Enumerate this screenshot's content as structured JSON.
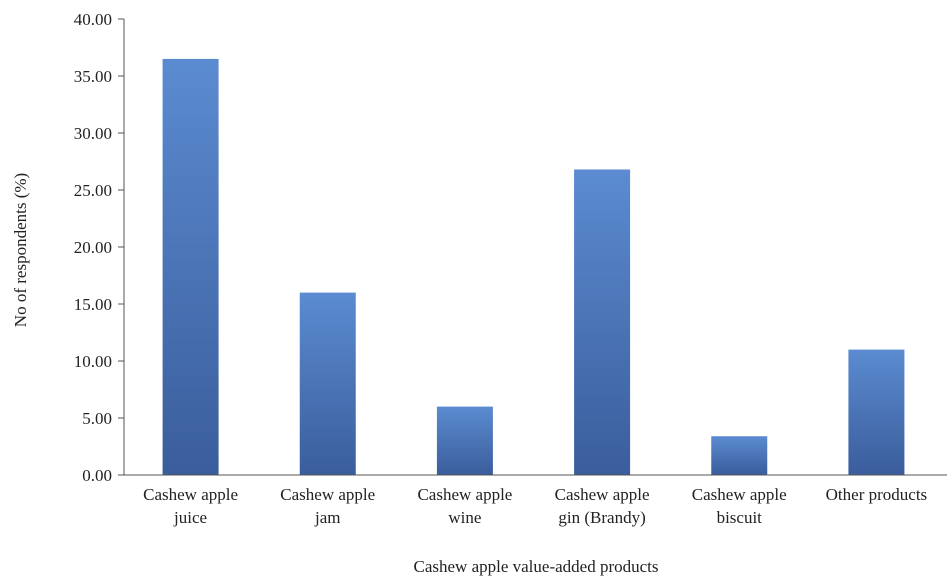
{
  "chart_data": {
    "type": "bar",
    "categories": [
      [
        "Cashew apple",
        "juice"
      ],
      [
        "Cashew apple",
        "jam"
      ],
      [
        "Cashew apple",
        "wine"
      ],
      [
        "Cashew apple",
        "gin (Brandy)"
      ],
      [
        "Cashew apple",
        "biscuit"
      ],
      [
        "Other products"
      ]
    ],
    "values": [
      36.5,
      16.0,
      6.0,
      26.8,
      3.4,
      11.0
    ],
    "xlabel": "Cashew apple value-added products",
    "ylabel": "No of respondents (%)",
    "ylim": [
      0,
      40
    ],
    "yticks": [
      "0.00",
      "5.00",
      "10.00",
      "15.00",
      "20.00",
      "25.00",
      "30.00",
      "35.00",
      "40.00"
    ],
    "grid": false,
    "legend": "none",
    "colors": {
      "bar_top": "#5b8bd0",
      "bar_bottom": "#3a5d9c",
      "axis": "#555555"
    }
  }
}
